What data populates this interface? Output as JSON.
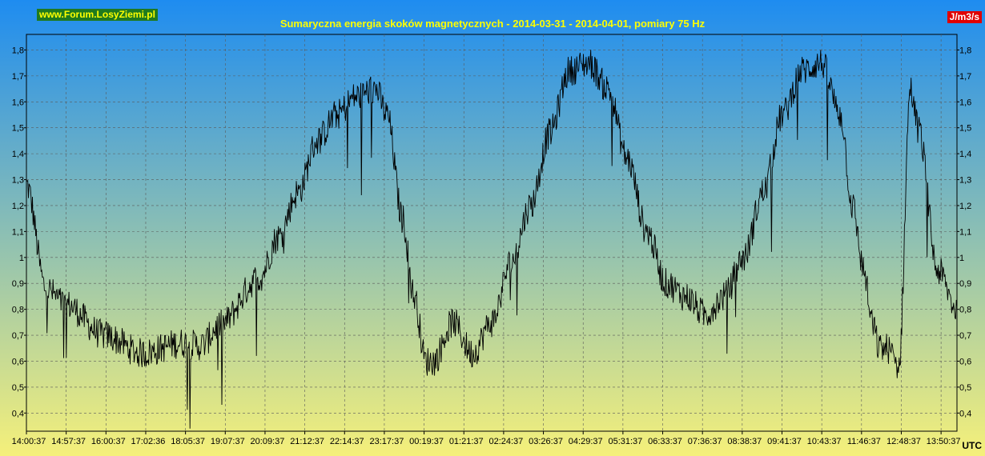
{
  "site_label": "www.Forum.LosyZiemi.pl",
  "unit_label": "J/m3/s",
  "timezone_label": "UTC",
  "colors": {
    "top_gradient": "#1e8cf0",
    "bottom_gradient": "#f5f07a",
    "line": "#000000",
    "title": "#ffff00",
    "site_badge_bg": "#1f7a1f",
    "unit_badge_bg": "#e00000"
  },
  "chart_data": {
    "type": "line",
    "title": "Sumaryczna energia skoków magnetycznych - 2014-03-31 - 2014-04-01, pomiary 75 Hz",
    "xlabel": "",
    "ylabel": "",
    "ylim": [
      0.33,
      1.86
    ],
    "y_ticks": [
      "0,4",
      "0,5",
      "0,6",
      "0,7",
      "0,8",
      "0,9",
      "1",
      "1,1",
      "1,2",
      "1,3",
      "1,4",
      "1,5",
      "1,6",
      "1,7",
      "1,8"
    ],
    "y_tick_values": [
      0.4,
      0.5,
      0.6,
      0.7,
      0.8,
      0.9,
      1.0,
      1.1,
      1.2,
      1.3,
      1.4,
      1.5,
      1.6,
      1.7,
      1.8
    ],
    "x_tick_labels": [
      "14:00:37",
      "14:57:37",
      "16:00:37",
      "17:02:36",
      "18:05:37",
      "19:07:37",
      "20:09:37",
      "21:12:37",
      "22:14:37",
      "23:17:37",
      "00:19:37",
      "01:21:37",
      "02:24:37",
      "03:26:37",
      "04:29:37",
      "05:31:37",
      "06:33:37",
      "07:36:37",
      "08:38:37",
      "09:41:37",
      "10:43:37",
      "11:46:37",
      "12:48:37",
      "13:50:37"
    ],
    "grid": true,
    "x_hours": [
      0,
      0.5,
      1.0,
      2.0,
      3.0,
      4.0,
      4.5,
      5.0,
      6.0,
      6.5,
      7.0,
      7.5,
      8.0,
      8.5,
      9.0,
      9.3,
      9.7,
      10.0,
      10.3,
      10.5,
      11.0,
      11.5,
      12.0,
      12.5,
      13.0,
      13.5,
      14.0,
      14.5,
      15.0,
      15.5,
      16.0,
      16.5,
      17.0,
      17.5,
      18.0,
      18.5,
      19.0,
      19.5,
      20.0,
      20.5,
      21.0,
      21.3,
      21.6,
      21.8,
      22.0,
      22.2,
      22.5,
      22.8,
      23.0,
      23.5,
      24.0
    ],
    "values": [
      1.28,
      0.88,
      0.82,
      0.7,
      0.63,
      0.67,
      0.66,
      0.74,
      0.92,
      1.08,
      1.25,
      1.45,
      1.55,
      1.62,
      1.65,
      1.55,
      1.15,
      0.85,
      0.6,
      0.6,
      0.75,
      0.63,
      0.75,
      0.98,
      1.2,
      1.48,
      1.72,
      1.75,
      1.65,
      1.38,
      1.1,
      0.9,
      0.85,
      0.78,
      0.85,
      1.0,
      1.25,
      1.55,
      1.72,
      1.75,
      1.55,
      1.2,
      0.95,
      0.75,
      0.65,
      0.65,
      0.58,
      1.65,
      1.5,
      0.95,
      0.8
    ]
  }
}
